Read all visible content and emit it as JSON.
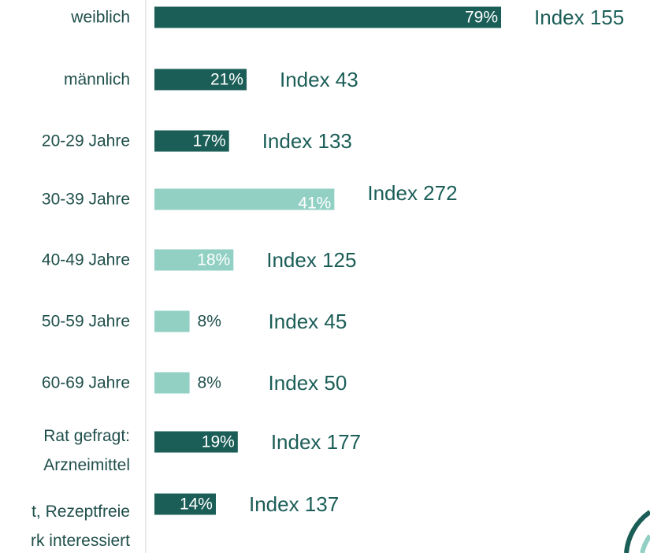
{
  "chart_data": {
    "type": "bar",
    "orientation": "horizontal",
    "categories": [
      "weiblich",
      "männlich",
      "20-29 Jahre",
      "30-39 Jahre",
      "40-49 Jahre",
      "50-59 Jahre",
      "60-69 Jahre",
      "Rat gefragt:\nArzneimittel",
      "t, Rezeptfreie\nrk interessiert"
    ],
    "values": [
      79,
      21,
      17,
      41,
      18,
      8,
      8,
      19,
      14
    ],
    "value_labels": [
      "79%",
      "21%",
      "17%",
      "41%",
      "18%",
      "8%",
      "8%",
      "19%",
      "14%"
    ],
    "colors": [
      "#1b5e57",
      "#1b5e57",
      "#1b5e57",
      "#92d0c4",
      "#92d0c4",
      "#92d0c4",
      "#92d0c4",
      "#1b5e57",
      "#1b5e57"
    ],
    "annotations": [
      "Index 155",
      "Index 43",
      "Index 133",
      "Index 272",
      "Index 125",
      "Index  45",
      "Index 50",
      "Index 177",
      "Index 137"
    ]
  }
}
